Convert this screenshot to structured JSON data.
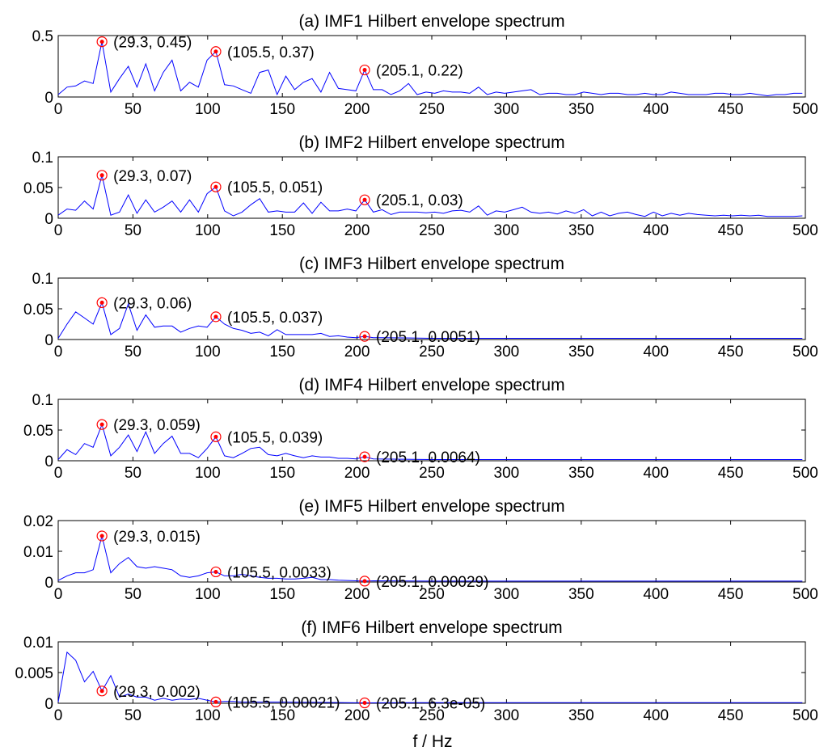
{
  "figure": {
    "xlabel": "f / Hz",
    "colors": {
      "line": "#0000ff",
      "marker_dot": "#ff0000",
      "marker_circle": "#ff0000"
    }
  },
  "chart_data": [
    {
      "type": "line",
      "title": "(a) IMF1 Hilbert envelope spectrum",
      "xlim": [
        0,
        500
      ],
      "ylim": [
        0,
        0.5
      ],
      "xticks": [
        0,
        50,
        100,
        150,
        200,
        250,
        300,
        350,
        400,
        450,
        500
      ],
      "yticks": [
        0,
        0.5
      ],
      "ytick_labels": [
        "0",
        "0.5"
      ],
      "x": [
        0,
        5.9,
        11.7,
        17.6,
        23.4,
        29.3,
        35.2,
        41,
        46.9,
        52.7,
        58.6,
        64.5,
        70.3,
        76.2,
        82,
        87.9,
        93.8,
        99.6,
        105.5,
        111.3,
        117.2,
        123,
        128.9,
        134.8,
        140.6,
        146.5,
        152.3,
        158.2,
        164.1,
        169.9,
        175.8,
        181.6,
        187.5,
        193.4,
        199.2,
        205.1,
        210.9,
        216.8,
        222.7,
        228.5,
        234.4,
        240.2,
        246.1,
        252,
        257.8,
        263.7,
        269.5,
        275.4,
        281.3,
        287.1,
        293,
        298.8,
        304.7,
        310.5,
        316.4,
        322.3,
        328.1,
        334,
        339.8,
        345.7,
        351.6,
        357.4,
        363.3,
        369.1,
        375,
        380.9,
        386.7,
        392.6,
        398.4,
        404.3,
        410.2,
        416,
        421.9,
        427.7,
        433.6,
        439.5,
        445.3,
        451.2,
        457,
        462.9,
        468.8,
        474.6,
        480.5,
        486.3,
        492.2,
        498
      ],
      "y": [
        0.02,
        0.08,
        0.09,
        0.13,
        0.11,
        0.45,
        0.04,
        0.15,
        0.25,
        0.08,
        0.27,
        0.05,
        0.2,
        0.3,
        0.05,
        0.12,
        0.08,
        0.3,
        0.37,
        0.1,
        0.09,
        0.06,
        0.03,
        0.2,
        0.22,
        0.02,
        0.17,
        0.06,
        0.12,
        0.15,
        0.04,
        0.2,
        0.07,
        0.06,
        0.05,
        0.22,
        0.06,
        0.06,
        0.02,
        0.05,
        0.11,
        0.02,
        0.04,
        0.03,
        0.05,
        0.04,
        0.04,
        0.03,
        0.08,
        0.02,
        0.04,
        0.03,
        0.04,
        0.05,
        0.06,
        0.02,
        0.03,
        0.03,
        0.02,
        0.02,
        0.04,
        0.03,
        0.02,
        0.03,
        0.03,
        0.02,
        0.02,
        0.03,
        0.02,
        0.02,
        0.04,
        0.03,
        0.02,
        0.02,
        0.02,
        0.03,
        0.03,
        0.02,
        0.02,
        0.03,
        0.02,
        0.01,
        0.02,
        0.02,
        0.03,
        0.03
      ],
      "markers": [
        {
          "x": 29.3,
          "y": 0.45,
          "label": "(29.3, 0.45)"
        },
        {
          "x": 105.5,
          "y": 0.37,
          "label": "(105.5, 0.37)"
        },
        {
          "x": 205.1,
          "y": 0.22,
          "label": "(205.1, 0.22)"
        }
      ]
    },
    {
      "type": "line",
      "title": "(b) IMF2 Hilbert envelope spectrum",
      "xlim": [
        0,
        500
      ],
      "ylim": [
        0,
        0.1
      ],
      "xticks": [
        0,
        50,
        100,
        150,
        200,
        250,
        300,
        350,
        400,
        450,
        500
      ],
      "yticks": [
        0,
        0.05,
        0.1
      ],
      "ytick_labels": [
        "0",
        "0.05",
        "0.1"
      ],
      "x": [
        0,
        5.9,
        11.7,
        17.6,
        23.4,
        29.3,
        35.2,
        41,
        46.9,
        52.7,
        58.6,
        64.5,
        70.3,
        76.2,
        82,
        87.9,
        93.8,
        99.6,
        105.5,
        111.3,
        117.2,
        123,
        128.9,
        134.8,
        140.6,
        146.5,
        152.3,
        158.2,
        164.1,
        169.9,
        175.8,
        181.6,
        187.5,
        193.4,
        199.2,
        205.1,
        210.9,
        216.8,
        222.7,
        228.5,
        234.4,
        240.2,
        246.1,
        252,
        257.8,
        263.7,
        269.5,
        275.4,
        281.3,
        287.1,
        293,
        298.8,
        304.7,
        310.5,
        316.4,
        322.3,
        328.1,
        334,
        339.8,
        345.7,
        351.6,
        357.4,
        363.3,
        369.1,
        375,
        380.9,
        386.7,
        392.6,
        398.4,
        404.3,
        410.2,
        416,
        421.9,
        427.7,
        433.6,
        439.5,
        445.3,
        451.2,
        457,
        462.9,
        468.8,
        474.6,
        480.5,
        486.3,
        492.2,
        498
      ],
      "y": [
        0.005,
        0.015,
        0.013,
        0.028,
        0.015,
        0.07,
        0.005,
        0.01,
        0.038,
        0.008,
        0.03,
        0.01,
        0.018,
        0.028,
        0.01,
        0.03,
        0.01,
        0.04,
        0.051,
        0.012,
        0.004,
        0.01,
        0.022,
        0.032,
        0.01,
        0.012,
        0.01,
        0.01,
        0.025,
        0.008,
        0.026,
        0.012,
        0.012,
        0.015,
        0.012,
        0.03,
        0.01,
        0.014,
        0.006,
        0.01,
        0.01,
        0.01,
        0.009,
        0.01,
        0.008,
        0.012,
        0.013,
        0.01,
        0.02,
        0.005,
        0.012,
        0.01,
        0.014,
        0.018,
        0.01,
        0.008,
        0.01,
        0.007,
        0.012,
        0.008,
        0.014,
        0.004,
        0.01,
        0.004,
        0.008,
        0.01,
        0.006,
        0.003,
        0.01,
        0.004,
        0.008,
        0.005,
        0.008,
        0.006,
        0.005,
        0.004,
        0.005,
        0.004,
        0.005,
        0.004,
        0.005,
        0.003,
        0.003,
        0.003,
        0.003,
        0.004
      ],
      "markers": [
        {
          "x": 29.3,
          "y": 0.07,
          "label": "(29.3, 0.07)"
        },
        {
          "x": 105.5,
          "y": 0.051,
          "label": "(105.5, 0.051)"
        },
        {
          "x": 205.1,
          "y": 0.03,
          "label": "(205.1, 0.03)"
        }
      ]
    },
    {
      "type": "line",
      "title": "(c) IMF3 Hilbert envelope spectrum",
      "xlim": [
        0,
        500
      ],
      "ylim": [
        0,
        0.1
      ],
      "xticks": [
        0,
        50,
        100,
        150,
        200,
        250,
        300,
        350,
        400,
        450,
        500
      ],
      "yticks": [
        0,
        0.05,
        0.1
      ],
      "ytick_labels": [
        "0",
        "0.05",
        "0.1"
      ],
      "x": [
        0,
        5.9,
        11.7,
        17.6,
        23.4,
        29.3,
        35.2,
        41,
        46.9,
        52.7,
        58.6,
        64.5,
        70.3,
        76.2,
        82,
        87.9,
        93.8,
        99.6,
        105.5,
        111.3,
        117.2,
        123,
        128.9,
        134.8,
        140.6,
        146.5,
        152.3,
        158.2,
        164.1,
        169.9,
        175.8,
        181.6,
        187.5,
        193.4,
        199.2,
        205.1,
        210.9,
        216.8,
        250,
        300,
        350,
        400,
        450,
        498
      ],
      "y": [
        0.002,
        0.025,
        0.045,
        0.035,
        0.025,
        0.06,
        0.008,
        0.018,
        0.058,
        0.015,
        0.04,
        0.02,
        0.022,
        0.022,
        0.012,
        0.018,
        0.022,
        0.02,
        0.037,
        0.025,
        0.018,
        0.015,
        0.01,
        0.012,
        0.006,
        0.016,
        0.008,
        0.008,
        0.008,
        0.008,
        0.01,
        0.005,
        0.006,
        0.004,
        0.003,
        0.0051,
        0.003,
        0.003,
        0.002,
        0.002,
        0.002,
        0.002,
        0.002,
        0.002
      ],
      "markers": [
        {
          "x": 29.3,
          "y": 0.06,
          "label": "(29.3, 0.06)"
        },
        {
          "x": 105.5,
          "y": 0.037,
          "label": "(105.5, 0.037)"
        },
        {
          "x": 205.1,
          "y": 0.0051,
          "label": "(205.1, 0.0051)"
        }
      ]
    },
    {
      "type": "line",
      "title": "(d) IMF4 Hilbert envelope spectrum",
      "xlim": [
        0,
        500
      ],
      "ylim": [
        0,
        0.1
      ],
      "xticks": [
        0,
        50,
        100,
        150,
        200,
        250,
        300,
        350,
        400,
        450,
        500
      ],
      "yticks": [
        0,
        0.05,
        0.1
      ],
      "ytick_labels": [
        "0",
        "0.05",
        "0.1"
      ],
      "x": [
        0,
        5.9,
        11.7,
        17.6,
        23.4,
        29.3,
        35.2,
        41,
        46.9,
        52.7,
        58.6,
        64.5,
        70.3,
        76.2,
        82,
        87.9,
        93.8,
        99.6,
        105.5,
        111.3,
        117.2,
        123,
        128.9,
        134.8,
        140.6,
        146.5,
        152.3,
        158.2,
        164.1,
        169.9,
        175.8,
        181.6,
        187.5,
        193.4,
        199.2,
        205.1,
        210.9,
        250,
        300,
        350,
        400,
        450,
        498
      ],
      "y": [
        0.002,
        0.018,
        0.01,
        0.028,
        0.022,
        0.059,
        0.008,
        0.022,
        0.042,
        0.015,
        0.047,
        0.012,
        0.028,
        0.04,
        0.012,
        0.012,
        0.005,
        0.02,
        0.039,
        0.008,
        0.005,
        0.012,
        0.02,
        0.022,
        0.01,
        0.008,
        0.012,
        0.008,
        0.005,
        0.008,
        0.006,
        0.006,
        0.004,
        0.004,
        0.003,
        0.0064,
        0.003,
        0.002,
        0.002,
        0.002,
        0.002,
        0.002,
        0.002
      ],
      "markers": [
        {
          "x": 29.3,
          "y": 0.059,
          "label": "(29.3, 0.059)"
        },
        {
          "x": 105.5,
          "y": 0.039,
          "label": "(105.5, 0.039)"
        },
        {
          "x": 205.1,
          "y": 0.0064,
          "label": "(205.1, 0.0064)"
        }
      ]
    },
    {
      "type": "line",
      "title": "(e) IMF5 Hilbert envelope spectrum",
      "xlim": [
        0,
        500
      ],
      "ylim": [
        0,
        0.02
      ],
      "xticks": [
        0,
        50,
        100,
        150,
        200,
        250,
        300,
        350,
        400,
        450,
        500
      ],
      "yticks": [
        0,
        0.01,
        0.02
      ],
      "ytick_labels": [
        "0",
        "0.01",
        "0.02"
      ],
      "x": [
        0,
        5.9,
        11.7,
        17.6,
        23.4,
        29.3,
        35.2,
        41,
        46.9,
        52.7,
        58.6,
        64.5,
        70.3,
        76.2,
        82,
        87.9,
        93.8,
        99.6,
        105.5,
        111.3,
        117.2,
        123,
        128.9,
        134.8,
        140.6,
        146.5,
        152.3,
        158.2,
        164.1,
        169.9,
        175.8,
        181.6,
        187.5,
        193.4,
        199.2,
        205.1,
        210.9,
        250,
        300,
        350,
        400,
        450,
        498
      ],
      "y": [
        0.0005,
        0.002,
        0.003,
        0.003,
        0.004,
        0.015,
        0.003,
        0.006,
        0.008,
        0.005,
        0.0045,
        0.005,
        0.0045,
        0.004,
        0.002,
        0.0015,
        0.002,
        0.003,
        0.0033,
        0.002,
        0.002,
        0.0025,
        0.002,
        0.0015,
        0.0012,
        0.0012,
        0.001,
        0.001,
        0.0012,
        0.0015,
        0.0008,
        0.0008,
        0.0006,
        0.0005,
        0.0004,
        0.00029,
        0.0004,
        0.0003,
        0.0003,
        0.0003,
        0.0003,
        0.0003,
        0.0003
      ],
      "markers": [
        {
          "x": 29.3,
          "y": 0.015,
          "label": "(29.3, 0.015)"
        },
        {
          "x": 105.5,
          "y": 0.0033,
          "label": "(105.5, 0.0033)"
        },
        {
          "x": 205.1,
          "y": 0.00029,
          "label": "(205.1, 0.00029)"
        }
      ]
    },
    {
      "type": "line",
      "title": "(f) IMF6 Hilbert envelope spectrum",
      "xlim": [
        0,
        500
      ],
      "ylim": [
        0,
        0.01
      ],
      "xticks": [
        0,
        50,
        100,
        150,
        200,
        250,
        300,
        350,
        400,
        450,
        500
      ],
      "yticks": [
        0,
        0.005,
        0.01
      ],
      "ytick_labels": [
        "0",
        "0.005",
        "0.01"
      ],
      "x": [
        0,
        5.9,
        11.7,
        17.6,
        23.4,
        29.3,
        35.2,
        41,
        46.9,
        52.7,
        58.6,
        64.5,
        70.3,
        76.2,
        82,
        87.9,
        93.8,
        99.6,
        105.5,
        111.3,
        117.2,
        123,
        150,
        205.1,
        250,
        300,
        350,
        400,
        450,
        498
      ],
      "y": [
        0.0002,
        0.0083,
        0.007,
        0.0035,
        0.0052,
        0.002,
        0.0045,
        0.001,
        0.0015,
        0.001,
        0.001,
        0.0005,
        0.0008,
        0.0005,
        0.0007,
        0.0006,
        0.0008,
        0.0005,
        0.00021,
        0.0003,
        0.0003,
        0.0002,
        0.0002,
        6.3e-05,
        0.0001,
        0.0001,
        0.0001,
        0.0001,
        0.0001,
        0.0001
      ],
      "markers": [
        {
          "x": 29.3,
          "y": 0.002,
          "label": "(29.3, 0.002)"
        },
        {
          "x": 105.5,
          "y": 0.00021,
          "label": "(105.5, 0.00021)"
        },
        {
          "x": 205.1,
          "y": 6.3e-05,
          "label": "(205.1, 6.3e-05)"
        }
      ]
    }
  ]
}
